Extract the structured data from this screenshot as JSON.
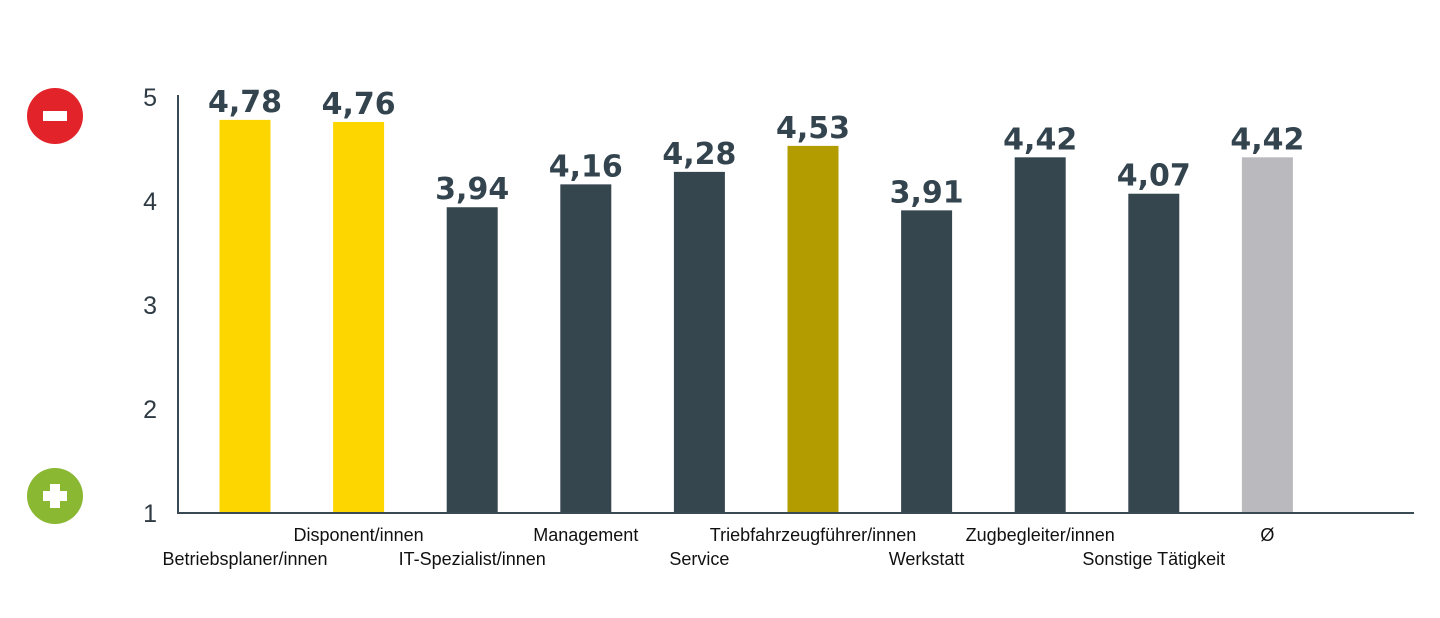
{
  "chart_data": {
    "type": "bar",
    "categories": [
      "Betriebsplaner/innen",
      "Disponent/innen",
      "IT-Spezialist/innen",
      "Management",
      "Service",
      "Triebfahrzeugführer/innen",
      "Werkstatt",
      "Zugbegleiter/innen",
      "Sonstige Tätigkeit",
      "Ø"
    ],
    "values": [
      4.78,
      4.76,
      3.94,
      4.16,
      4.28,
      4.53,
      3.91,
      4.42,
      4.07,
      4.42
    ],
    "value_labels": [
      "4,78",
      "4,76",
      "3,94",
      "4,16",
      "4,28",
      "4,53",
      "3,91",
      "4,42",
      "4,07",
      "4,42"
    ],
    "bar_colors": [
      "#fdd600",
      "#fdd600",
      "#36464f",
      "#36464f",
      "#36464f",
      "#b29c00",
      "#36464f",
      "#36464f",
      "#36464f",
      "#b9b9be"
    ],
    "yticks": [
      "1",
      "2",
      "3",
      "4",
      "5"
    ],
    "ylim": [
      1,
      5
    ],
    "grid": false,
    "title": "",
    "xlabel": "",
    "ylabel": ""
  },
  "scale_markers": {
    "top": {
      "icon": "minus-icon",
      "color": "#e2232a"
    },
    "bottom": {
      "icon": "plus-icon",
      "color": "#8ab833"
    }
  },
  "colors": {
    "axis": "#3a4a55",
    "value_label": "#33444f"
  }
}
